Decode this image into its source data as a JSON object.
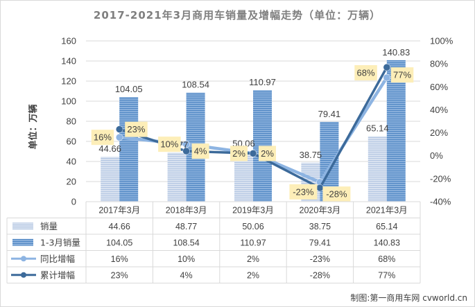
{
  "chart_data": {
    "type": "bar",
    "title": "2017-2021年3月商用车销量及增幅走势（单位：万辆）",
    "ylabel": "单位：万辆",
    "ylim": [
      0,
      160
    ],
    "yticks": [
      0,
      20,
      40,
      60,
      80,
      100,
      120,
      140,
      160
    ],
    "y2lim": [
      -40,
      100
    ],
    "y2ticks": [
      "-40%",
      "-20%",
      "0%",
      "20%",
      "40%",
      "60%",
      "80%",
      "100%"
    ],
    "y2tick_values": [
      -40,
      -20,
      0,
      20,
      40,
      60,
      80,
      100
    ],
    "categories": [
      "2017年3月",
      "2018年3月",
      "2019年3月",
      "2020年3月",
      "2021年3月"
    ],
    "series": [
      {
        "name": "销量",
        "kind": "bar",
        "axis": "left",
        "values": [
          44.66,
          48.77,
          50.06,
          38.75,
          65.14
        ],
        "labels": [
          "44.66",
          "48.77",
          "50.06",
          "38.75",
          "65.14"
        ],
        "color": "#c9d6ea"
      },
      {
        "name": "1-3月销量",
        "kind": "bar",
        "axis": "left",
        "values": [
          104.05,
          108.54,
          110.97,
          79.41,
          140.83
        ],
        "labels": [
          "104.05",
          "108.54",
          "110.97",
          "79.41",
          "140.83"
        ],
        "color": "#6a9bd0"
      },
      {
        "name": "同比增幅",
        "kind": "line",
        "axis": "right",
        "values": [
          16,
          10,
          2,
          -23,
          68
        ],
        "labels": [
          "16%",
          "10%",
          "2%",
          "-23%",
          "68%"
        ],
        "color": "#8db4e2"
      },
      {
        "name": "累计增幅",
        "kind": "line",
        "axis": "right",
        "values": [
          23,
          4,
          2,
          -28,
          77
        ],
        "labels": [
          "23%",
          "4%",
          "2%",
          "-28%",
          "77%"
        ],
        "color": "#3c6a9a"
      }
    ],
    "grid": true,
    "legend": "data-table-left",
    "label_box_color": "#fdeeb8"
  },
  "watermark": "制图:第一商用车网 cvworld.cn"
}
